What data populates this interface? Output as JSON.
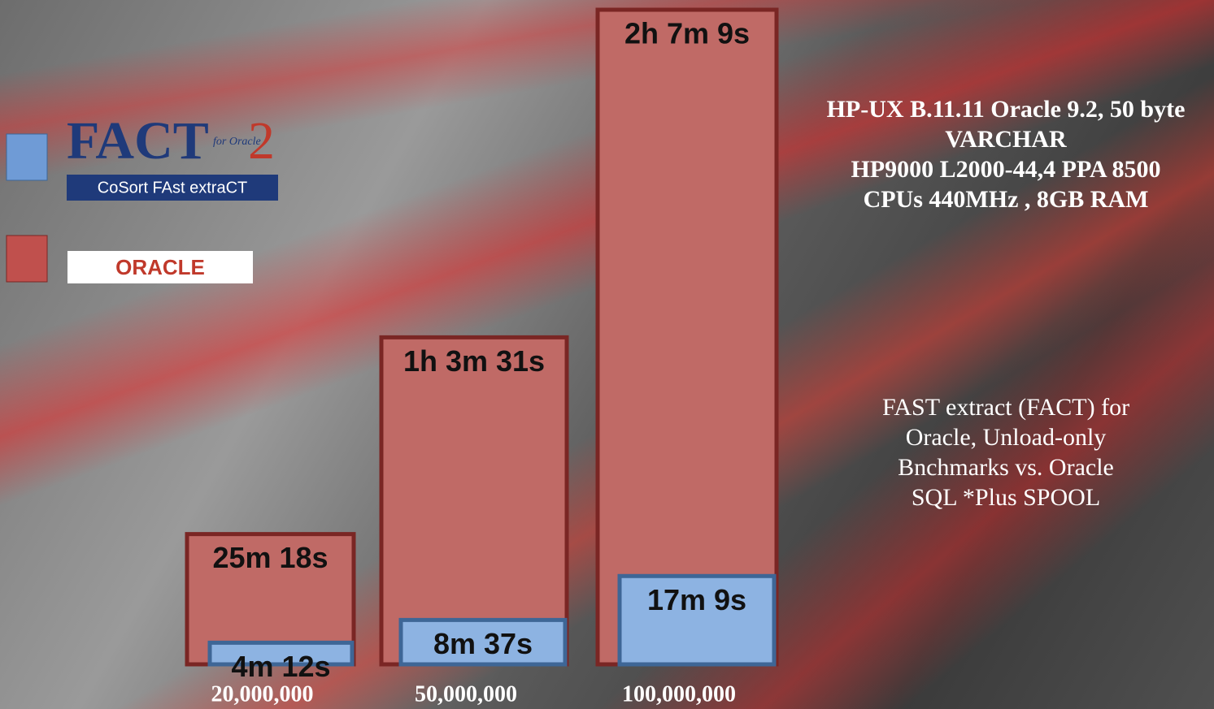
{
  "chart_data": {
    "type": "overlap-bar",
    "categories": [
      "20,000,000",
      "50,000,000",
      "100,000,000"
    ],
    "series": [
      {
        "name": "FACT",
        "color": "#8db3e2",
        "border": "#3e6696",
        "values": [
          252,
          517,
          1029
        ],
        "value_labels": [
          "4m 12s",
          "8m 37s",
          "17m 9s"
        ]
      },
      {
        "name": "ORACLE",
        "color": "#c06a66",
        "border": "#7a2624",
        "values": [
          1518,
          3811,
          7629
        ],
        "value_labels": [
          "25m 18s",
          "1h 3m 31s",
          "2h 7m 9s"
        ]
      }
    ],
    "legend_logo": {
      "for_oracle": "for Oracle",
      "version": "2",
      "tagline": "CoSort FAst extraCT"
    },
    "annotations": {
      "system": [
        "HP-UX B.11.11 Oracle 9.2, 50 byte",
        "VARCHAR",
        "HP9000 L2000-44,4 PPA 8500",
        "CPUs  440MHz , 8GB RAM"
      ],
      "description": [
        "FAST extract (FACT) for",
        "Oracle, Unload-only",
        "Bnchmarks vs. Oracle",
        "SQL *Plus SPOOL"
      ]
    }
  }
}
